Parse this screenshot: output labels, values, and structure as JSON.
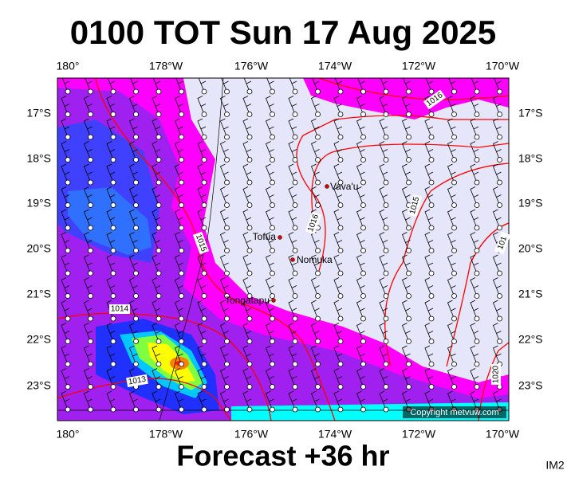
{
  "title": "0100 TOT Sun 17 Aug 2025",
  "lon_labels": [
    "180°",
    "178°W",
    "176°W",
    "174°W",
    "172°W",
    "170°W"
  ],
  "lat_labels": [
    "17°S",
    "18°S",
    "19°S",
    "20°S",
    "21°S",
    "22°S",
    "23°S"
  ],
  "places": [
    {
      "label": "Vava'u"
    },
    {
      "label": "Tofua"
    },
    {
      "label": "Nomuka"
    },
    {
      "label": "Tongatapu"
    }
  ],
  "isobar_labels": [
    "1016",
    "1015",
    "1016",
    "1015",
    "1014",
    "1013",
    "1020",
    "101"
  ],
  "copyright": "Copyright metvuw.com",
  "footer": "Forecast +36 hr",
  "corner": "IM2"
}
